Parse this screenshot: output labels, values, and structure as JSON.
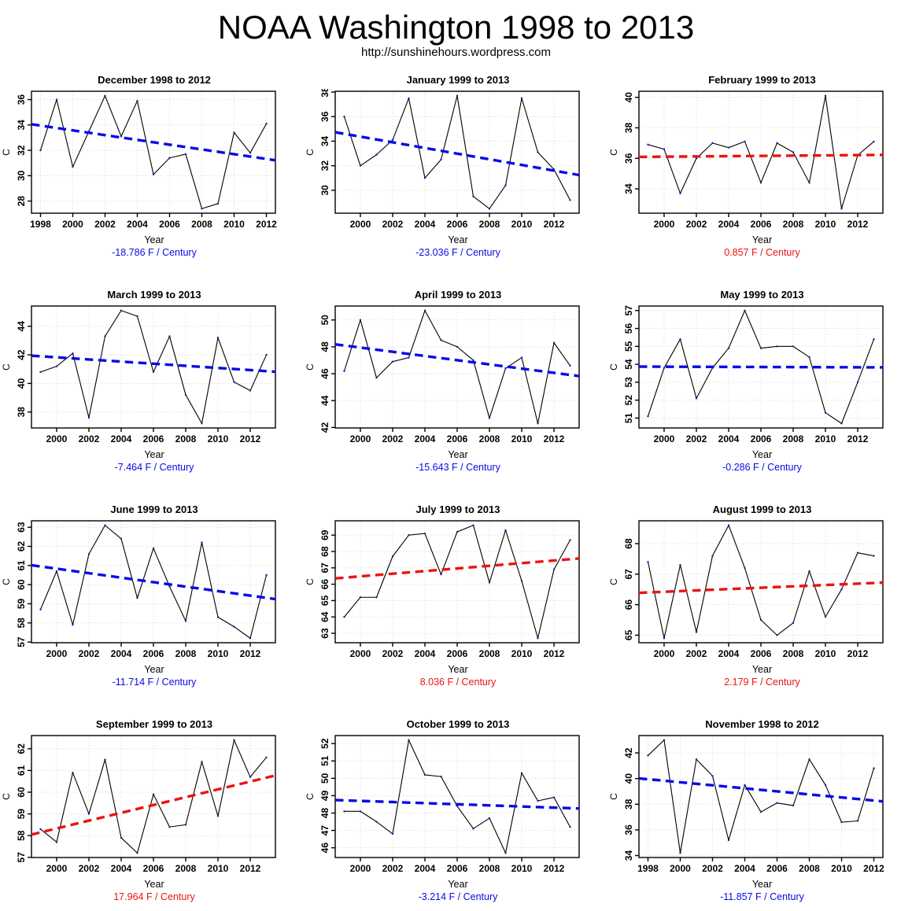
{
  "page": {
    "title": "NOAA Washington 1998 to 2013",
    "subtitle": "http://sunshinehours.wordpress.com"
  },
  "colors": {
    "negative_trend": "#0a0ae6",
    "positive_trend": "#ea1414",
    "data_line": "#000000",
    "data_point": "#1515cc",
    "grid_line": "#d9d9d9",
    "axis": "#000000"
  },
  "chart_data": [
    {
      "type": "line",
      "title": "December 1998 to 2012",
      "xlabel": "Year",
      "ylabel": "C",
      "trend_label": "-18.786 F / Century",
      "trend_f_per_century": -18.786,
      "trend_direction": "negative",
      "trend_start": 33.95,
      "trend_end": 31.32,
      "x": [
        1998,
        1999,
        2000,
        2001,
        2002,
        2003,
        2004,
        2005,
        2006,
        2007,
        2008,
        2009,
        2010,
        2011,
        2012
      ],
      "values": [
        32.0,
        36.0,
        30.7,
        33.5,
        36.3,
        33.1,
        35.9,
        30.1,
        31.4,
        31.7,
        27.4,
        27.8,
        33.4,
        31.8,
        34.1
      ],
      "xticks": [
        1998,
        2000,
        2002,
        2004,
        2006,
        2008,
        2010,
        2012
      ],
      "yticks": [
        28,
        30,
        32,
        34,
        36
      ]
    },
    {
      "type": "line",
      "title": "January 1999 to 2013",
      "xlabel": "Year",
      "ylabel": "C",
      "trend_label": "-23.036 F / Century",
      "trend_f_per_century": -23.036,
      "trend_direction": "negative",
      "trend_start": 34.6,
      "trend_end": 31.37,
      "x": [
        1999,
        2000,
        2001,
        2002,
        2003,
        2004,
        2005,
        2006,
        2007,
        2008,
        2009,
        2010,
        2011,
        2012,
        2013
      ],
      "values": [
        36.0,
        32.0,
        32.9,
        34.1,
        37.5,
        31.0,
        32.5,
        37.7,
        29.5,
        28.5,
        30.4,
        37.5,
        33.1,
        31.7,
        29.2
      ],
      "xticks": [
        2000,
        2002,
        2004,
        2006,
        2008,
        2010,
        2012
      ],
      "yticks": [
        30,
        32,
        34,
        36,
        38
      ]
    },
    {
      "type": "line",
      "title": "February 1999 to 2013",
      "xlabel": "Year",
      "ylabel": "C",
      "trend_label": "0.857 F / Century",
      "trend_f_per_century": 0.857,
      "trend_direction": "positive",
      "trend_start": 36.1,
      "trend_end": 36.22,
      "x": [
        1999,
        2000,
        2001,
        2002,
        2003,
        2004,
        2005,
        2006,
        2007,
        2008,
        2009,
        2010,
        2011,
        2012,
        2013
      ],
      "values": [
        36.9,
        36.6,
        33.7,
        36.0,
        37.0,
        36.7,
        37.1,
        34.4,
        37.0,
        36.4,
        34.4,
        40.1,
        32.7,
        36.2,
        37.1
      ],
      "xticks": [
        2000,
        2002,
        2004,
        2006,
        2008,
        2010,
        2012
      ],
      "yticks": [
        34,
        36,
        38,
        40
      ]
    },
    {
      "type": "line",
      "title": "March 1999 to 2013",
      "xlabel": "Year",
      "ylabel": "C",
      "trend_label": "-7.464 F / Century",
      "trend_f_per_century": -7.464,
      "trend_direction": "negative",
      "trend_start": 41.9,
      "trend_end": 40.86,
      "x": [
        1999,
        2000,
        2001,
        2002,
        2003,
        2004,
        2005,
        2006,
        2007,
        2008,
        2009,
        2010,
        2011,
        2012,
        2013
      ],
      "values": [
        40.8,
        41.2,
        42.1,
        37.6,
        43.3,
        45.1,
        44.7,
        40.8,
        43.3,
        39.2,
        37.2,
        43.2,
        40.1,
        39.5,
        42.0
      ],
      "xticks": [
        2000,
        2002,
        2004,
        2006,
        2008,
        2010,
        2012
      ],
      "yticks": [
        38,
        40,
        42,
        44
      ]
    },
    {
      "type": "line",
      "title": "April 1999 to 2013",
      "xlabel": "Year",
      "ylabel": "C",
      "trend_label": "-15.643 F / Century",
      "trend_f_per_century": -15.643,
      "trend_direction": "negative",
      "trend_start": 48.1,
      "trend_end": 45.91,
      "x": [
        1999,
        2000,
        2001,
        2002,
        2003,
        2004,
        2005,
        2006,
        2007,
        2008,
        2009,
        2010,
        2011,
        2012,
        2013
      ],
      "values": [
        46.2,
        50.0,
        45.7,
        46.9,
        47.2,
        50.7,
        48.5,
        48.0,
        47.0,
        42.7,
        46.4,
        47.2,
        42.3,
        48.3,
        46.6
      ],
      "xticks": [
        2000,
        2002,
        2004,
        2006,
        2008,
        2010,
        2012
      ],
      "yticks": [
        42,
        44,
        46,
        48,
        50
      ]
    },
    {
      "type": "line",
      "title": "May 1999 to 2013",
      "xlabel": "Year",
      "ylabel": "C",
      "trend_label": "-0.286 F / Century",
      "trend_f_per_century": -0.286,
      "trend_direction": "negative",
      "trend_start": 53.87,
      "trend_end": 53.83,
      "x": [
        1999,
        2000,
        2001,
        2002,
        2003,
        2004,
        2005,
        2006,
        2007,
        2008,
        2009,
        2010,
        2011,
        2012,
        2013
      ],
      "values": [
        51.1,
        53.8,
        55.4,
        52.1,
        53.8,
        54.9,
        57.0,
        54.9,
        55.0,
        55.0,
        54.4,
        51.3,
        50.7,
        53.0,
        55.4
      ],
      "xticks": [
        2000,
        2002,
        2004,
        2006,
        2008,
        2010,
        2012
      ],
      "yticks": [
        51,
        52,
        53,
        54,
        55,
        56,
        57
      ]
    },
    {
      "type": "line",
      "title": "June 1999 to 2013",
      "xlabel": "Year",
      "ylabel": "C",
      "trend_label": "-11.714 F / Century",
      "trend_f_per_century": -11.714,
      "trend_direction": "negative",
      "trend_start": 60.95,
      "trend_end": 59.31,
      "x": [
        1999,
        2000,
        2001,
        2002,
        2003,
        2004,
        2005,
        2006,
        2007,
        2008,
        2009,
        2010,
        2011,
        2012,
        2013
      ],
      "values": [
        58.7,
        60.7,
        57.9,
        61.6,
        63.1,
        62.4,
        59.3,
        61.9,
        59.9,
        58.1,
        62.2,
        58.3,
        57.8,
        57.2,
        60.5
      ],
      "xticks": [
        2000,
        2002,
        2004,
        2006,
        2008,
        2010,
        2012
      ],
      "yticks": [
        57,
        58,
        59,
        60,
        61,
        62,
        63
      ]
    },
    {
      "type": "line",
      "title": "July 1999 to 2013",
      "xlabel": "Year",
      "ylabel": "C",
      "trend_label": "8.036 F / Century",
      "trend_f_per_century": 8.036,
      "trend_direction": "positive",
      "trend_start": 66.4,
      "trend_end": 67.53,
      "x": [
        1999,
        2000,
        2001,
        2002,
        2003,
        2004,
        2005,
        2006,
        2007,
        2008,
        2009,
        2010,
        2011,
        2012,
        2013
      ],
      "values": [
        64.0,
        65.2,
        65.2,
        67.7,
        69.0,
        69.1,
        66.6,
        69.2,
        69.6,
        66.1,
        69.3,
        66.2,
        62.7,
        66.9,
        68.7
      ],
      "xticks": [
        2000,
        2002,
        2004,
        2006,
        2008,
        2010,
        2012
      ],
      "yticks": [
        63,
        64,
        65,
        66,
        67,
        68,
        69
      ]
    },
    {
      "type": "line",
      "title": "August 1999 to 2013",
      "xlabel": "Year",
      "ylabel": "C",
      "trend_label": "2.179 F / Century",
      "trend_f_per_century": 2.179,
      "trend_direction": "positive",
      "trend_start": 66.4,
      "trend_end": 66.71,
      "x": [
        1999,
        2000,
        2001,
        2002,
        2003,
        2004,
        2005,
        2006,
        2007,
        2008,
        2009,
        2010,
        2011,
        2012,
        2013
      ],
      "values": [
        67.4,
        64.9,
        67.3,
        65.1,
        67.6,
        68.6,
        67.2,
        65.5,
        65.0,
        65.4,
        67.1,
        65.6,
        66.5,
        67.7,
        67.6
      ],
      "xticks": [
        2000,
        2002,
        2004,
        2006,
        2008,
        2010,
        2012
      ],
      "yticks": [
        65,
        66,
        67,
        68
      ]
    },
    {
      "type": "line",
      "title": "September 1999 to 2013",
      "xlabel": "Year",
      "ylabel": "C",
      "trend_label": "17.964 F / Century",
      "trend_f_per_century": 17.964,
      "trend_direction": "positive",
      "trend_start": 58.15,
      "trend_end": 60.67,
      "x": [
        1999,
        2000,
        2001,
        2002,
        2003,
        2004,
        2005,
        2006,
        2007,
        2008,
        2009,
        2010,
        2011,
        2012,
        2013
      ],
      "values": [
        58.3,
        57.7,
        60.9,
        59.0,
        61.5,
        57.9,
        57.2,
        59.9,
        58.4,
        58.5,
        61.4,
        58.9,
        62.4,
        60.7,
        61.6
      ],
      "xticks": [
        2000,
        2002,
        2004,
        2006,
        2008,
        2010,
        2012
      ],
      "yticks": [
        57,
        58,
        59,
        60,
        61,
        62
      ]
    },
    {
      "type": "line",
      "title": "October 1999 to 2013",
      "xlabel": "Year",
      "ylabel": "C",
      "trend_label": "-3.214 F / Century",
      "trend_f_per_century": -3.214,
      "trend_direction": "negative",
      "trend_start": 48.73,
      "trend_end": 48.28,
      "x": [
        1999,
        2000,
        2001,
        2002,
        2003,
        2004,
        2005,
        2006,
        2007,
        2008,
        2009,
        2010,
        2011,
        2012,
        2013
      ],
      "values": [
        48.1,
        48.1,
        47.5,
        46.8,
        52.2,
        50.2,
        50.1,
        48.4,
        47.1,
        47.7,
        45.7,
        50.3,
        48.7,
        48.9,
        47.2
      ],
      "xticks": [
        2000,
        2002,
        2004,
        2006,
        2008,
        2010,
        2012
      ],
      "yticks": [
        46,
        47,
        48,
        49,
        50,
        51,
        52
      ]
    },
    {
      "type": "line",
      "title": "November 1998 to 2012",
      "xlabel": "Year",
      "ylabel": "C",
      "trend_label": "-11.857 F / Century",
      "trend_f_per_century": -11.857,
      "trend_direction": "negative",
      "trend_start": 39.95,
      "trend_end": 38.29,
      "x": [
        1998,
        1999,
        2000,
        2001,
        2002,
        2003,
        2004,
        2005,
        2006,
        2007,
        2008,
        2009,
        2010,
        2011,
        2012
      ],
      "values": [
        41.8,
        43.0,
        34.2,
        41.5,
        40.2,
        35.2,
        39.5,
        37.4,
        38.1,
        37.9,
        41.5,
        39.5,
        36.6,
        36.7,
        40.8
      ],
      "xticks": [
        1998,
        2000,
        2002,
        2004,
        2006,
        2008,
        2010,
        2012
      ],
      "yticks": [
        34,
        36,
        38,
        40,
        42
      ]
    }
  ]
}
